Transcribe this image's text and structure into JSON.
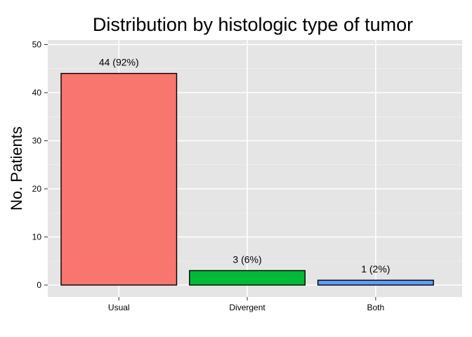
{
  "chart_data": {
    "type": "bar",
    "title": "Distribution by histologic type of tumor",
    "xlabel": "",
    "ylabel": "No. Patients",
    "categories": [
      "Usual",
      "Divergent",
      "Both"
    ],
    "values": [
      44,
      3,
      1
    ],
    "data_labels": [
      "44 (92%)",
      "3 (6%)",
      "1 (2%)"
    ],
    "colors": [
      "#F8766D",
      "#00BA38",
      "#619CFF"
    ],
    "ylim": [
      0,
      50
    ],
    "yticks": [
      0,
      10,
      20,
      30,
      40,
      50
    ],
    "ytick_labels": [
      "0",
      "10",
      "20",
      "30",
      "40",
      "50"
    ],
    "grid": true,
    "panel_background": "#E5E5E5",
    "legend": "none"
  }
}
